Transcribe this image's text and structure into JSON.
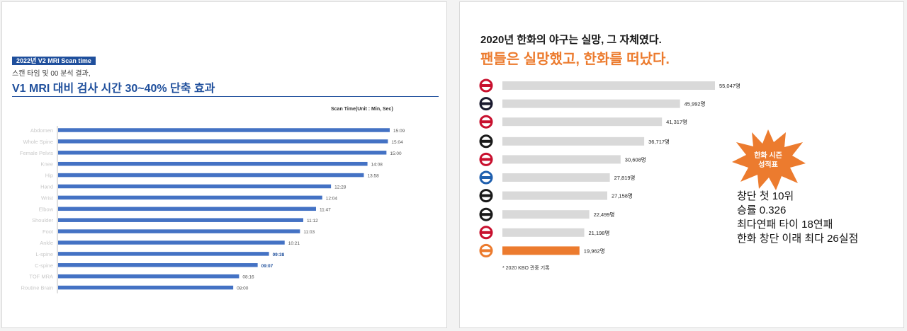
{
  "left": {
    "tag": "2022년 V2  MRI Scan time",
    "subtitle": "스캔 타임 및 00 분석 결과,",
    "title": "V1 MRI 대비 검사 시간 30~40% 단축 효과",
    "unit_label": "Scan Time(Unit : Min, Sec)"
  },
  "right": {
    "title1": "2020년 한화의 야구는 실망, 그 자체였다.",
    "title2": "팬들은 실망했고, 한화를 떠났다.",
    "footnote": "* 2020 KBO 관중 기록",
    "badge_line1": "한화 시즌",
    "badge_line2": "성적표",
    "stats": [
      "창단 첫 10위",
      "승률 0.326",
      "최다연패 타이 18연패",
      "한화 창단 이래 최다 26실점"
    ]
  },
  "colors": {
    "blue_bar": "#4472c4",
    "title_blue": "#1f4f9c",
    "gray_bar": "#d9d9d9",
    "orange": "#ec7b2e"
  },
  "chart_data": [
    {
      "type": "bar",
      "orientation": "horizontal",
      "title": "V1 MRI 대비 검사 시간 30~40% 단축 효과",
      "xlabel": "Scan Time(Unit : Min, Sec)",
      "categories": [
        "Abdomen",
        "Whole Spine",
        "Female Pelvis",
        "Knee",
        "Hip",
        "Hand",
        "Wrist",
        "Elbow",
        "Shoulder",
        "Foot",
        "Ankle",
        "L-spine",
        "C-spine",
        "TOF MRA",
        "Routine Brain"
      ],
      "values": [
        15.15,
        15.067,
        15.0,
        14.133,
        13.967,
        12.467,
        12.067,
        11.783,
        11.2,
        11.05,
        10.35,
        9.633,
        9.117,
        8.267,
        8.0
      ],
      "labels": [
        "15:09",
        "15:04",
        "15:00",
        "14:08",
        "13:58",
        "12:28",
        "12:04",
        "11:47",
        "11:12",
        "11:03",
        "10:21",
        "09:38",
        "09:07",
        "08:16",
        "08:00"
      ],
      "highlighted": [
        "L-spine",
        "C-spine"
      ],
      "color": "#4472c4",
      "grid": false,
      "legend": "none"
    },
    {
      "type": "bar",
      "orientation": "horizontal",
      "title": "2020년 한화의 야구는 실망, 그 자체였다.",
      "categories": [
        "team-1",
        "team-2",
        "team-3",
        "team-4",
        "team-5",
        "team-6",
        "team-7",
        "team-8",
        "team-9",
        "hanwha"
      ],
      "values": [
        55047,
        45992,
        41317,
        36717,
        30608,
        27819,
        27158,
        22499,
        21198,
        19962
      ],
      "labels": [
        "55,047명",
        "45,992명",
        "41,317명",
        "36,717명",
        "30,608명",
        "27,819명",
        "27,158명",
        "22,499명",
        "21,198명",
        "19,962명"
      ],
      "logo_icons": [
        "kt-logo-icon",
        "doosan-logo-icon",
        "lotte-logo-icon",
        "sk-logo-icon",
        "lg-logo-icon",
        "samsung-logo-icon",
        "kia-logo-icon",
        "kiwoom-logo-icon",
        "nc-logo-icon",
        "hanwha-logo-icon"
      ],
      "highlighted": [
        "hanwha"
      ],
      "color": "#d9d9d9",
      "highlight_color": "#ec7b2e",
      "grid": false,
      "legend": "none"
    }
  ]
}
